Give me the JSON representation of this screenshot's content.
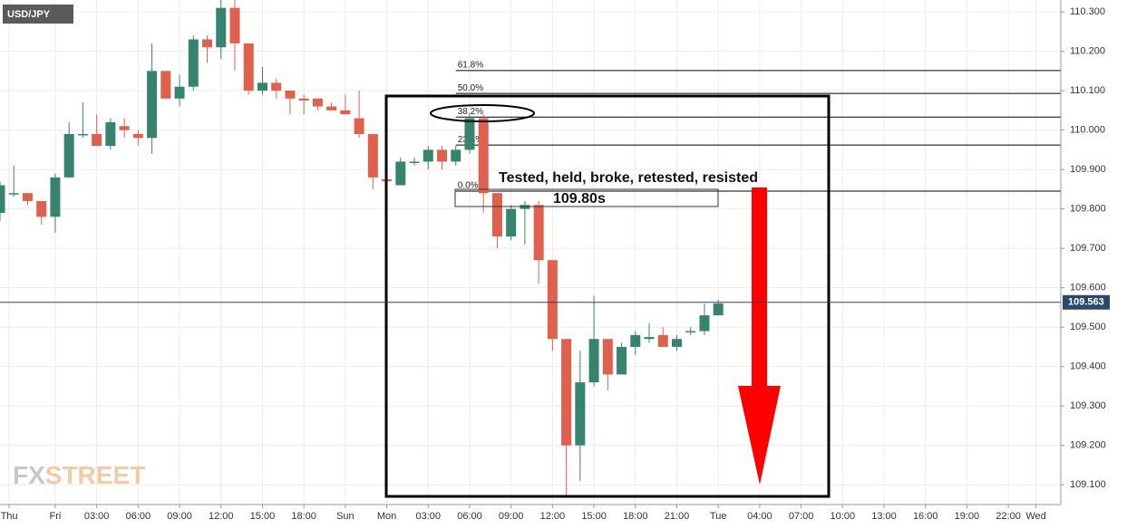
{
  "chart_data": {
    "type": "candlestick",
    "title": "USD/JPY",
    "watermark": [
      "FX",
      "STREET"
    ],
    "up_color": "#36846f",
    "down_color": "#e0604e",
    "grid": true,
    "xlim": [
      0,
      76.8
    ],
    "ylim": [
      109.05,
      110.33
    ],
    "yticks": [
      {
        "value": 110.3,
        "label": "110.300"
      },
      {
        "value": 110.2,
        "label": "110.200"
      },
      {
        "value": 110.1,
        "label": "110.100"
      },
      {
        "value": 110.0,
        "label": "110.000"
      },
      {
        "value": 109.9,
        "label": "109.900"
      },
      {
        "value": 109.8,
        "label": "109.800"
      },
      {
        "value": 109.7,
        "label": "109.700"
      },
      {
        "value": 109.6,
        "label": "109.600"
      },
      {
        "value": 109.5,
        "label": "109.500"
      },
      {
        "value": 109.4,
        "label": "109.400"
      },
      {
        "value": 109.3,
        "label": "109.300"
      },
      {
        "value": 109.2,
        "label": "109.200"
      },
      {
        "value": 109.1,
        "label": "109.100"
      }
    ],
    "xticks": [
      {
        "value": 0.66,
        "label": "Thu"
      },
      {
        "value": 4,
        "label": "Fri"
      },
      {
        "value": 7,
        "label": "03:00"
      },
      {
        "value": 10,
        "label": "06:00"
      },
      {
        "value": 13,
        "label": "09:00"
      },
      {
        "value": 16,
        "label": "12:00"
      },
      {
        "value": 19,
        "label": "15:00"
      },
      {
        "value": 22,
        "label": "18:00"
      },
      {
        "value": 25,
        "label": "Sun"
      },
      {
        "value": 28,
        "label": "Mon"
      },
      {
        "value": 31,
        "label": "03:00"
      },
      {
        "value": 34,
        "label": "06:00"
      },
      {
        "value": 37,
        "label": "09:00"
      },
      {
        "value": 40,
        "label": "12:00"
      },
      {
        "value": 43,
        "label": "15:00"
      },
      {
        "value": 46,
        "label": "18:00"
      },
      {
        "value": 49,
        "label": "21:00"
      },
      {
        "value": 52,
        "label": "Tue"
      },
      {
        "value": 55,
        "label": "04:00"
      },
      {
        "value": 58,
        "label": "07:00"
      },
      {
        "value": 61,
        "label": "10:00"
      },
      {
        "value": 64,
        "label": "13:00"
      },
      {
        "value": 67,
        "label": "16:00"
      },
      {
        "value": 70,
        "label": "19:00"
      },
      {
        "value": 73,
        "label": "22:00"
      },
      {
        "value": 75,
        "label": "Wed"
      }
    ],
    "x": [
      0,
      1,
      2,
      3,
      4,
      5,
      6,
      7,
      8,
      9,
      10,
      11,
      12,
      13,
      14,
      15,
      16,
      17,
      18,
      19,
      20,
      21,
      22,
      23,
      24,
      25,
      26,
      27,
      28,
      29,
      30,
      31,
      32,
      33,
      34,
      35,
      36,
      37,
      38,
      39,
      40,
      41,
      42,
      43,
      44,
      45,
      46,
      47,
      48,
      49,
      50,
      51,
      52
    ],
    "open": [
      109.79,
      109.84,
      109.84,
      109.82,
      109.78,
      109.88,
      109.99,
      109.99,
      109.96,
      110.01,
      109.99,
      109.98,
      110.15,
      110.08,
      110.11,
      110.23,
      110.21,
      110.31,
      110.22,
      110.1,
      110.12,
      110.1,
      110.08,
      110.08,
      110.06,
      110.05,
      110.03,
      109.99,
      109.875,
      109.86,
      109.92,
      109.92,
      109.95,
      109.92,
      109.95,
      110.03,
      109.84,
      109.73,
      109.8,
      109.81,
      109.67,
      109.47,
      109.2,
      109.36,
      109.47,
      109.38,
      109.45,
      109.47,
      109.48,
      109.45,
      109.49,
      109.49,
      109.53
    ],
    "high": [
      109.87,
      109.91,
      109.84,
      109.82,
      109.89,
      110.02,
      110.07,
      110.04,
      110.03,
      110.03,
      110.0,
      110.22,
      110.15,
      110.14,
      110.24,
      110.24,
      110.33,
      110.35,
      110.22,
      110.16,
      110.13,
      110.1,
      110.09,
      110.08,
      110.07,
      110.09,
      110.1,
      109.99,
      109.875,
      109.93,
      109.93,
      109.96,
      109.96,
      109.96,
      110.04,
      110.04,
      109.84,
      109.81,
      109.82,
      109.82,
      109.67,
      109.47,
      109.44,
      109.58,
      109.47,
      109.46,
      109.49,
      109.51,
      109.5,
      109.48,
      109.5,
      109.56,
      109.57
    ],
    "low": [
      109.77,
      109.83,
      109.81,
      109.76,
      109.74,
      109.88,
      109.98,
      109.96,
      109.95,
      109.98,
      109.96,
      109.94,
      110.08,
      110.06,
      110.1,
      110.17,
      110.18,
      110.15,
      110.09,
      110.09,
      110.08,
      110.04,
      110.04,
      110.05,
      110.05,
      110.04,
      109.98,
      109.85,
      109.87,
      109.86,
      109.91,
      109.9,
      109.9,
      109.91,
      109.94,
      109.79,
      109.7,
      109.72,
      109.71,
      109.61,
      109.44,
      109.07,
      109.11,
      109.35,
      109.34,
      109.38,
      109.43,
      109.46,
      109.45,
      109.44,
      109.48,
      109.48,
      109.53
    ],
    "close": [
      109.86,
      109.84,
      109.82,
      109.78,
      109.88,
      109.99,
      109.99,
      109.96,
      110.02,
      110.0,
      109.98,
      110.15,
      110.08,
      110.11,
      110.23,
      110.21,
      110.31,
      110.22,
      110.1,
      110.12,
      110.1,
      110.08,
      110.075,
      110.06,
      110.05,
      110.04,
      109.99,
      109.88,
      109.87,
      109.92,
      109.92,
      109.95,
      109.92,
      109.95,
      110.03,
      109.84,
      109.73,
      109.8,
      109.81,
      109.67,
      109.47,
      109.2,
      109.36,
      109.47,
      109.38,
      109.45,
      109.48,
      109.475,
      109.45,
      109.47,
      109.49,
      109.53,
      109.56
    ],
    "current_price": 109.563,
    "fib_x_start": 33.0,
    "fib_levels": [
      {
        "label": "61.8%",
        "price": 110.151
      },
      {
        "label": "50.0%",
        "price": 110.093
      },
      {
        "label": "38.2%",
        "price": 110.033
      },
      {
        "label": "23.6%",
        "price": 109.962
      },
      {
        "label": "0.0%",
        "price": 109.845
      }
    ],
    "annotation": "Tested, held, broke, retested, resisted",
    "level_label": "109.80s"
  }
}
